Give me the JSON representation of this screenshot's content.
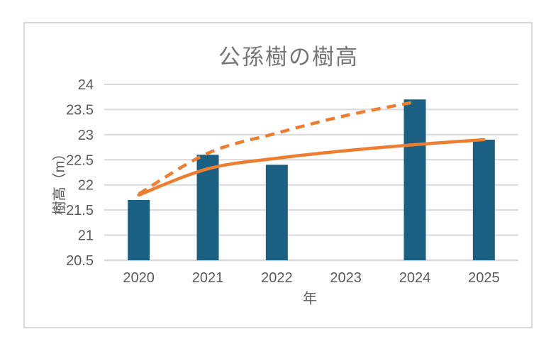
{
  "frame": {
    "background": "#ffffff",
    "border_color": "#d9d9d9"
  },
  "chart_data": {
    "type": "bar",
    "title": "公孫樹の樹高",
    "xlabel": "年",
    "ylabel": "樹高（m）",
    "categories": [
      "2020",
      "2021",
      "2022",
      "2023",
      "2024",
      "2025"
    ],
    "yticks": [
      "24",
      "23.5",
      "23",
      "22.5",
      "22",
      "21.5",
      "21",
      "20.5"
    ],
    "ylim": [
      20.5,
      24
    ],
    "ytick_step": 0.5,
    "grid": true,
    "legend": "none",
    "series": [
      {
        "id": "bars",
        "type": "bar",
        "color": "#1b6083",
        "values": [
          21.7,
          22.6,
          22.4,
          null,
          23.7,
          22.9
        ]
      },
      {
        "id": "trendline-solid",
        "type": "line",
        "style": "solid",
        "color": "#ed7d31",
        "values": [
          21.8,
          22.32,
          22.53,
          22.68,
          22.8,
          22.9
        ]
      },
      {
        "id": "trendline-dashed",
        "type": "line",
        "style": "dashed",
        "color": "#ed7d31",
        "values": [
          21.82,
          22.63,
          23.03,
          23.38,
          23.65,
          null
        ]
      }
    ],
    "colors": {
      "bar": "#1b6083",
      "trendline": "#ed7d31",
      "gridline": "#d9d9d9",
      "axis_line": "#d9d9d9",
      "tick_text": "#595959",
      "title_text": "#757575"
    }
  }
}
